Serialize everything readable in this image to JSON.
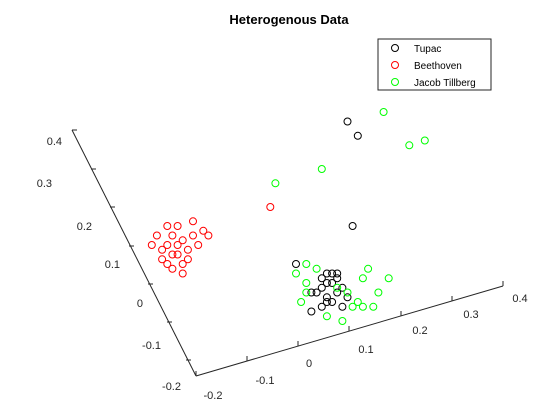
{
  "chart_data": {
    "type": "scatter",
    "projection": "3d",
    "title": "Heterogenous Data",
    "grid": false,
    "legend_position": "top-right",
    "axes": {
      "x": {
        "ticks": [
          "-0.2",
          "-0.1",
          "0",
          "0.1",
          "0.2",
          "0.3",
          "0.4"
        ]
      },
      "y": {
        "ticks": [
          "-0.2",
          "-0.1",
          "0",
          "0.1",
          "0.2",
          "0.3",
          "0.4"
        ]
      },
      "z": {
        "ticks": [
          "-0.2",
          "-0.1",
          "0",
          "0.1",
          "0.2",
          "0.3",
          "0.4"
        ]
      }
    },
    "series": [
      {
        "name": "Tupac",
        "color": "#000000",
        "points": [
          [
            0.03,
            0.02
          ],
          [
            0.1,
            0.38
          ],
          [
            0.12,
            0.35
          ],
          [
            0.11,
            0.16
          ],
          [
            0.0,
            0.08
          ],
          [
            0.05,
            0.05
          ],
          [
            0.06,
            0.04
          ],
          [
            0.07,
            0.06
          ],
          [
            0.08,
            0.05
          ],
          [
            0.09,
            0.03
          ],
          [
            0.06,
            0.01
          ],
          [
            0.04,
            0.02
          ],
          [
            0.07,
            0.0
          ],
          [
            0.05,
            -0.01
          ],
          [
            0.08,
            0.02
          ],
          [
            0.1,
            0.01
          ],
          [
            0.06,
            0.06
          ],
          [
            0.03,
            -0.02
          ],
          [
            0.09,
            -0.01
          ],
          [
            0.05,
            0.03
          ],
          [
            0.07,
            0.04
          ],
          [
            0.08,
            0.06
          ],
          [
            0.06,
            0.0
          ]
        ]
      },
      {
        "name": "Beethoven",
        "color": "#ff0000",
        "points": [
          [
            -0.05,
            0.2
          ],
          [
            -0.22,
            0.13
          ],
          [
            -0.25,
            0.16
          ],
          [
            -0.23,
            0.12
          ],
          [
            -0.27,
            0.14
          ],
          [
            -0.24,
            0.1
          ],
          [
            -0.21,
            0.11
          ],
          [
            -0.26,
            0.11
          ],
          [
            -0.2,
            0.14
          ],
          [
            -0.22,
            0.08
          ],
          [
            -0.25,
            0.08
          ],
          [
            -0.19,
            0.12
          ],
          [
            -0.23,
            0.16
          ],
          [
            -0.28,
            0.12
          ],
          [
            -0.24,
            0.14
          ],
          [
            -0.21,
            0.09
          ],
          [
            -0.26,
            0.09
          ],
          [
            -0.18,
            0.15
          ],
          [
            -0.23,
            0.1
          ],
          [
            -0.2,
            0.17
          ],
          [
            -0.25,
            0.12
          ],
          [
            -0.22,
            0.06
          ],
          [
            -0.17,
            0.14
          ],
          [
            -0.24,
            0.07
          ]
        ]
      },
      {
        "name": "Jacob Tillberg",
        "color": "#00ff00",
        "points": [
          [
            0.17,
            0.4
          ],
          [
            0.25,
            0.34
          ],
          [
            0.22,
            0.33
          ],
          [
            0.05,
            0.28
          ],
          [
            -0.04,
            0.25
          ],
          [
            0.02,
            0.08
          ],
          [
            0.04,
            0.07
          ],
          [
            0.14,
            0.07
          ],
          [
            0.18,
            0.05
          ],
          [
            0.13,
            0.05
          ],
          [
            0.0,
            0.06
          ],
          [
            0.02,
            0.04
          ],
          [
            0.1,
            0.02
          ],
          [
            0.16,
            0.02
          ],
          [
            0.12,
            0.0
          ],
          [
            0.08,
            0.03
          ],
          [
            0.11,
            -0.01
          ],
          [
            0.02,
            0.02
          ],
          [
            0.15,
            -0.01
          ],
          [
            0.13,
            -0.01
          ],
          [
            0.06,
            -0.03
          ],
          [
            0.09,
            -0.04
          ],
          [
            0.01,
            0.0
          ]
        ]
      }
    ]
  }
}
